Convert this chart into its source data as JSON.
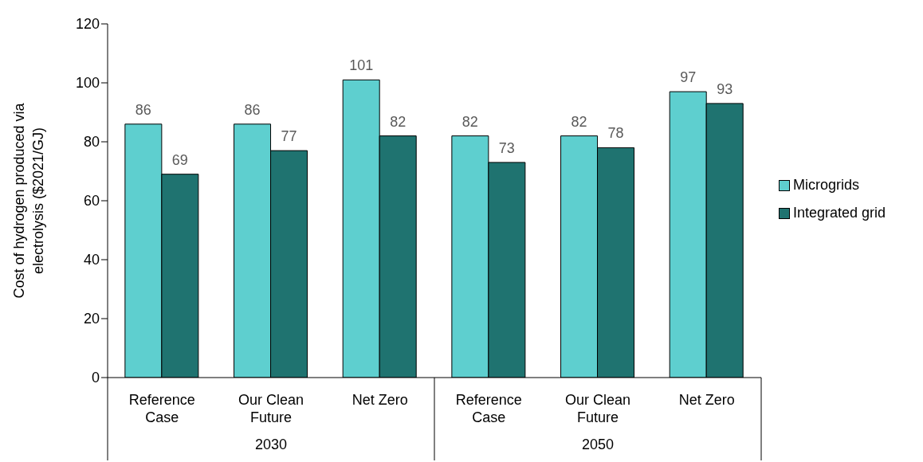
{
  "chart_data": {
    "type": "bar",
    "categories": [
      "Reference Case",
      "Our Clean Future",
      "Net Zero",
      "Reference Case",
      "Our Clean Future",
      "Net Zero"
    ],
    "series": [
      {
        "name": "Microgrids",
        "color": "#5ecfcf",
        "values": [
          86,
          86,
          101,
          82,
          82,
          97
        ]
      },
      {
        "name": "Integrated grid",
        "color": "#1f7370",
        "values": [
          69,
          77,
          82,
          73,
          78,
          93
        ]
      }
    ],
    "ylabel": "Cost of hydrogen produced via electrolysis ($2021/GJ)",
    "ylim": [
      0,
      120
    ],
    "yticks": [
      0,
      20,
      40,
      60,
      80,
      100,
      120
    ],
    "annotations": [
      "2030",
      "2050"
    ],
    "data_labels": true,
    "grid": false,
    "legend": "right"
  }
}
